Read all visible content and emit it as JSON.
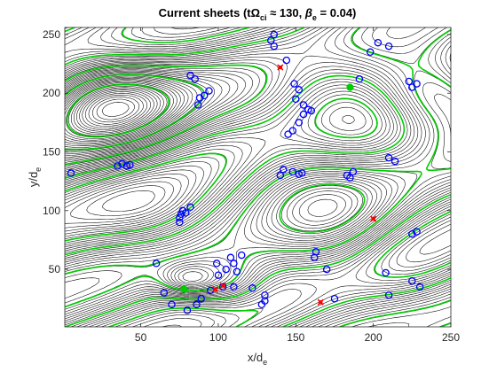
{
  "chart_data": {
    "type": "contour",
    "title": "Current sheets (tΩci ≈ 130, βe = 0.04)",
    "title_parts": {
      "prefix": "Current sheets (tΩ",
      "sub": "ci",
      "mid": " ≈ 130, ",
      "beta": "β",
      "beta_sub": "e",
      "suffix": " = 0.04)"
    },
    "xlabel": {
      "main": "x/d",
      "sub": "e"
    },
    "ylabel": {
      "main": "y/d",
      "sub": "e"
    },
    "xlim": [
      1,
      250
    ],
    "ylim": [
      1,
      256
    ],
    "xticks": [
      50,
      100,
      150,
      200,
      250
    ],
    "yticks": [
      50,
      100,
      150,
      200,
      250
    ],
    "grid": false,
    "box": true,
    "colors": {
      "contours": "#000000",
      "current_sheets": "#00cc00",
      "o_points": "#0000ff",
      "x_points": "#ff0000",
      "axes": "#262626"
    },
    "o_points": [
      [
        5,
        132
      ],
      [
        35,
        138
      ],
      [
        38,
        140
      ],
      [
        41,
        138
      ],
      [
        43,
        139
      ],
      [
        60,
        55
      ],
      [
        75,
        94
      ],
      [
        76,
        97
      ],
      [
        79,
        98
      ],
      [
        77,
        100
      ],
      [
        82,
        103
      ],
      [
        75,
        90
      ],
      [
        65,
        30
      ],
      [
        70,
        20
      ],
      [
        80,
        15
      ],
      [
        86,
        20
      ],
      [
        89,
        25
      ],
      [
        95,
        32
      ],
      [
        100,
        45
      ],
      [
        105,
        50
      ],
      [
        110,
        55
      ],
      [
        112,
        48
      ],
      [
        99,
        55
      ],
      [
        108,
        60
      ],
      [
        115,
        62
      ],
      [
        103,
        35
      ],
      [
        110,
        35
      ],
      [
        122,
        34
      ],
      [
        128,
        20
      ],
      [
        130,
        23
      ],
      [
        130,
        28
      ],
      [
        140,
        130
      ],
      [
        142,
        135
      ],
      [
        148,
        133
      ],
      [
        152,
        131
      ],
      [
        154,
        132
      ],
      [
        145,
        165
      ],
      [
        148,
        168
      ],
      [
        152,
        175
      ],
      [
        155,
        182
      ],
      [
        158,
        186
      ],
      [
        160,
        185
      ],
      [
        155,
        190
      ],
      [
        150,
        195
      ],
      [
        144,
        228
      ],
      [
        136,
        240
      ],
      [
        134,
        245
      ],
      [
        136,
        250
      ],
      [
        87,
        190
      ],
      [
        88,
        196
      ],
      [
        91,
        198
      ],
      [
        94,
        202
      ],
      [
        85,
        212
      ],
      [
        82,
        215
      ],
      [
        152,
        203
      ],
      [
        149,
        208
      ],
      [
        162,
        60
      ],
      [
        163,
        65
      ],
      [
        170,
        50
      ],
      [
        175,
        25
      ],
      [
        183,
        130
      ],
      [
        185,
        128
      ],
      [
        187,
        133
      ],
      [
        225,
        205
      ],
      [
        228,
        208
      ],
      [
        223,
        210
      ],
      [
        225,
        80
      ],
      [
        228,
        82
      ],
      [
        225,
        40
      ],
      [
        230,
        35
      ],
      [
        208,
        47
      ],
      [
        210,
        28
      ],
      [
        210,
        145
      ],
      [
        214,
        142
      ],
      [
        191,
        212
      ],
      [
        198,
        235
      ],
      [
        203,
        243
      ],
      [
        210,
        240
      ]
    ],
    "x_points": [
      [
        140,
        222
      ],
      [
        98,
        33
      ],
      [
        103,
        36
      ],
      [
        200,
        93
      ],
      [
        166,
        22
      ]
    ],
    "green_points": [
      [
        78,
        33
      ],
      [
        185,
        205
      ]
    ]
  }
}
